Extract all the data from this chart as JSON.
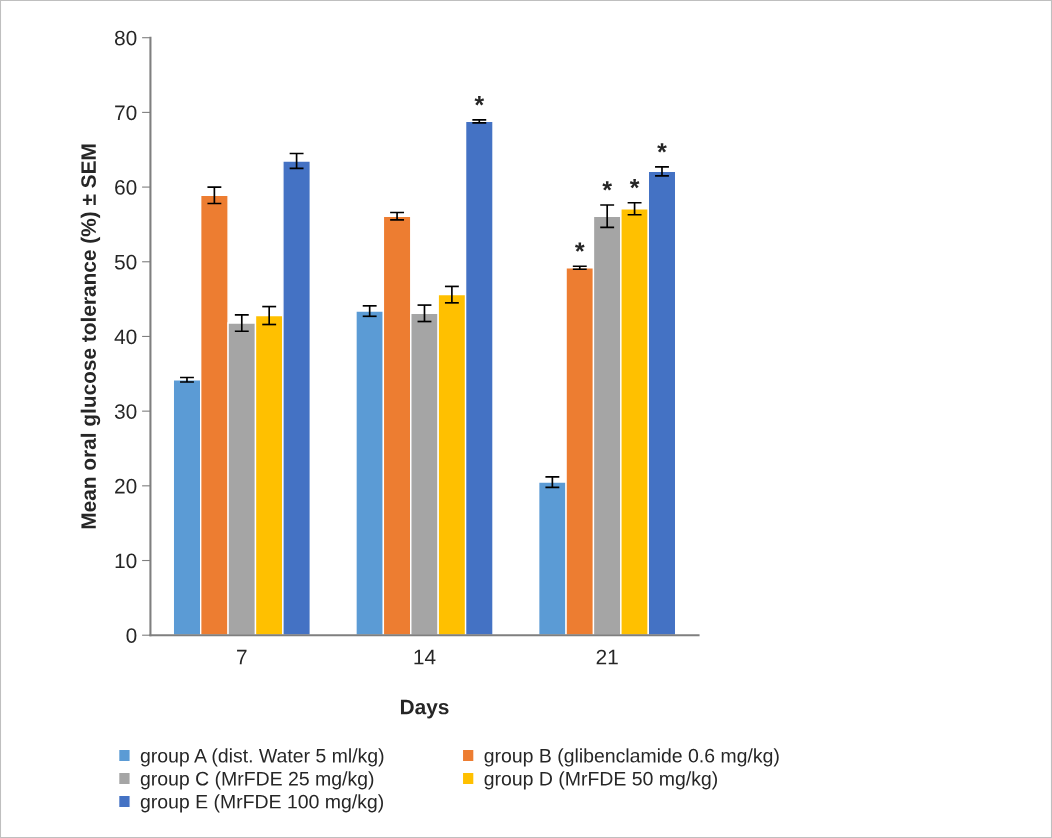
{
  "chart_data": {
    "type": "bar",
    "xlabel": "Days",
    "ylabel": "Mean oral glucose tolerance (%) ± SEM",
    "categories": [
      "7",
      "14",
      "21"
    ],
    "series": [
      {
        "name": "group A (dist. Water 5 ml/kg)",
        "color": "#5b9bd5",
        "values": [
          34.2,
          43.4,
          20.5
        ],
        "errors": [
          0.3,
          0.7,
          0.7
        ]
      },
      {
        "name": "group B (glibenclamide 0.6 mg/kg)",
        "color": "#ed7d31",
        "values": [
          58.9,
          56.1,
          49.2
        ],
        "errors": [
          1.1,
          0.5,
          0.2
        ],
        "value_labels": [
          null,
          null,
          "*"
        ]
      },
      {
        "name": "group C (MrFDE 25 mg/kg)",
        "color": "#a5a5a5",
        "values": [
          41.8,
          43.1,
          56.1
        ],
        "errors": [
          1.1,
          1.1,
          1.5
        ],
        "value_labels": [
          null,
          null,
          "*"
        ]
      },
      {
        "name": "group D (MrFDE 50 mg/kg)",
        "color": "#ffc000",
        "values": [
          42.8,
          45.6,
          57.1
        ],
        "errors": [
          1.2,
          1.1,
          0.8
        ],
        "value_labels": [
          null,
          null,
          "*"
        ]
      },
      {
        "name": "group E (MrFDE 100 mg/kg)",
        "color": "#4472c4",
        "values": [
          63.5,
          68.8,
          62.1
        ],
        "errors": [
          1.0,
          0.2,
          0.6
        ],
        "value_labels": [
          null,
          "*",
          "*"
        ]
      }
    ],
    "ylim": [
      0,
      80
    ],
    "yticks": [
      0,
      10,
      20,
      30,
      40,
      50,
      60,
      70,
      80
    ],
    "grid": false,
    "legend": "bottom"
  }
}
